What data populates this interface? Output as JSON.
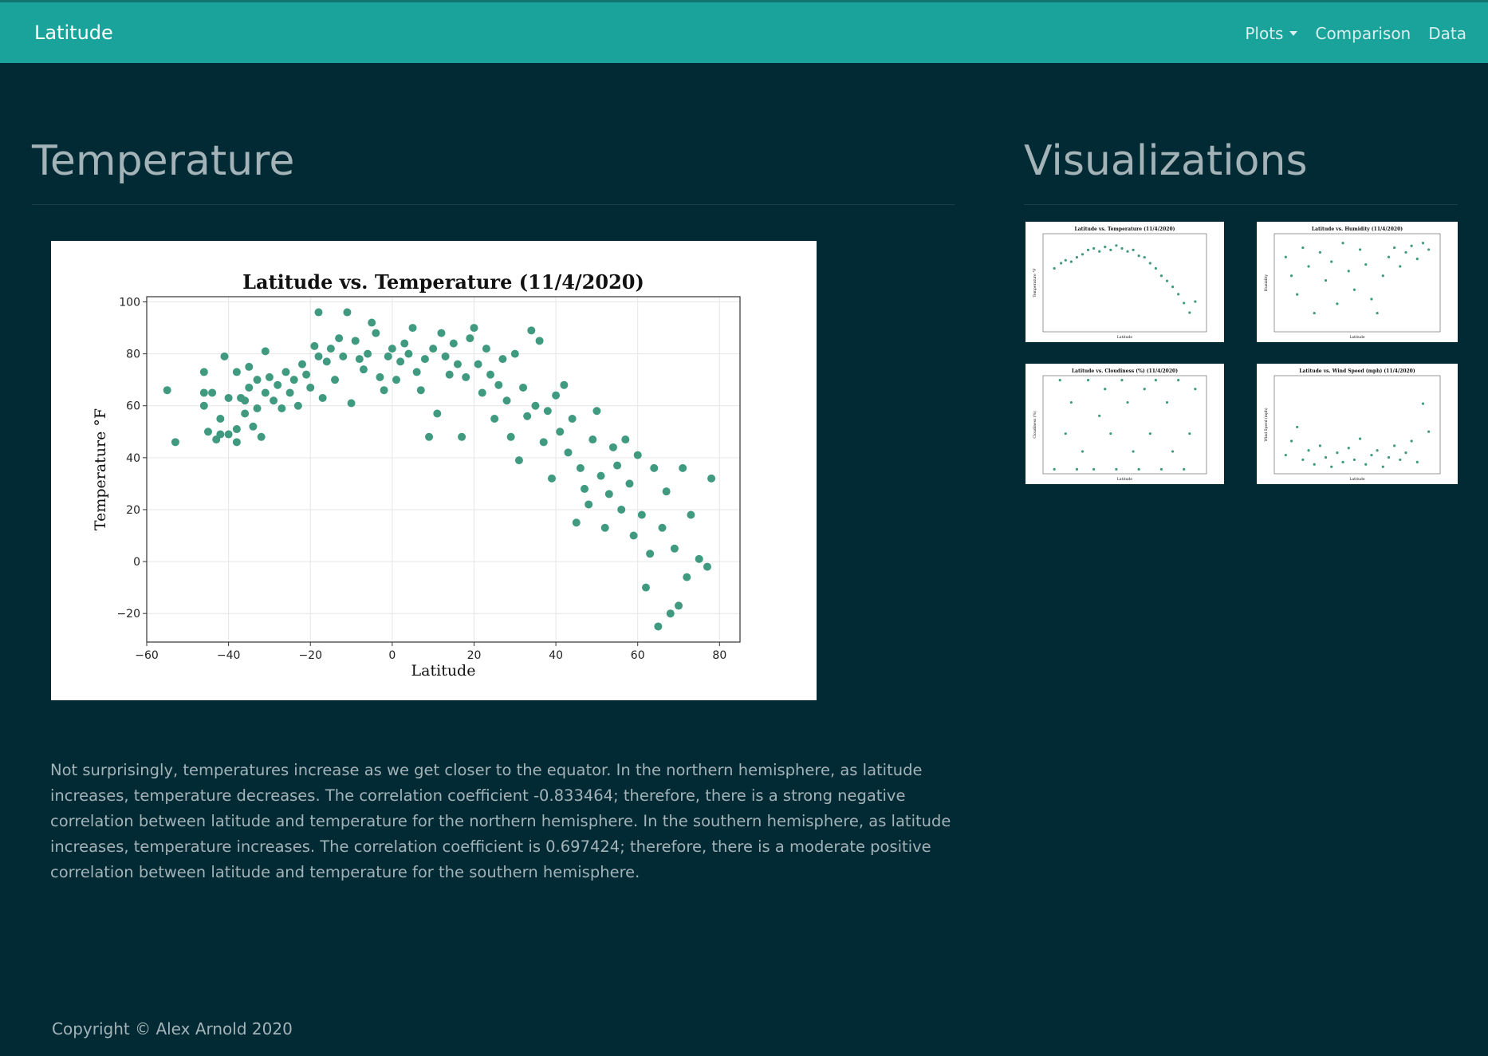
{
  "nav": {
    "brand": "Latitude",
    "links": [
      "Plots",
      "Comparison",
      "Data"
    ]
  },
  "main": {
    "heading": "Temperature",
    "paragraph": "Not surprisingly, temperatures increase as we get closer to the equator. In the northern hemisphere, as latitude increases, temperature decreases. The correlation coefficient -0.833464; therefore, there is a strong negative correlation between latitude and temperature for the northern hemisphere. In the southern hemisphere, as latitude increases, temperature increases. The correlation coefficient is 0.697424; therefore, there is a moderate positive correlation between latitude and temperature for the southern hemisphere.",
    "chart_data": {
      "type": "scatter",
      "title": "Latitude vs. Temperature (11/4/2020)",
      "xlabel": "Latitude",
      "ylabel": "Temperature °F",
      "color": "#3f9a80",
      "grid": true,
      "xlim": [
        -60,
        85
      ],
      "ylim": [
        -31,
        102
      ],
      "xticks": [
        {
          "value": -60,
          "label": "−60"
        },
        {
          "value": -40,
          "label": "−40"
        },
        {
          "value": -20,
          "label": "−20"
        },
        0,
        20,
        40,
        60,
        80
      ],
      "yticks": [
        {
          "value": -20,
          "label": "−20"
        },
        0,
        20,
        40,
        60,
        80,
        100
      ],
      "x": [
        -55,
        -53,
        -46,
        -46,
        -46,
        -45,
        -44,
        -43,
        -42,
        -42,
        -41,
        -40,
        -40,
        -38,
        -38,
        -38,
        -37,
        -36,
        -36,
        -35,
        -35,
        -34,
        -33,
        -33,
        -32,
        -31,
        -31,
        -30,
        -29,
        -28,
        -27,
        -26,
        -25,
        -24,
        -23,
        -22,
        -21,
        -20,
        -19,
        -18,
        -18,
        -17,
        -16,
        -15,
        -14,
        -13,
        -12,
        -11,
        -10,
        -9,
        -8,
        -7,
        -6,
        -5,
        -4,
        -3,
        -2,
        -1,
        0,
        1,
        2,
        3,
        4,
        5,
        6,
        7,
        8,
        9,
        10,
        11,
        12,
        13,
        14,
        15,
        16,
        17,
        18,
        19,
        20,
        21,
        22,
        23,
        24,
        25,
        26,
        27,
        28,
        29,
        30,
        31,
        32,
        33,
        34,
        35,
        36,
        37,
        38,
        39,
        40,
        41,
        42,
        43,
        44,
        45,
        46,
        47,
        48,
        49,
        50,
        51,
        52,
        53,
        54,
        55,
        56,
        57,
        58,
        59,
        60,
        61,
        62,
        63,
        64,
        65,
        66,
        67,
        68,
        69,
        70,
        71,
        72,
        73,
        75,
        77,
        78
      ],
      "y": [
        66,
        46,
        73,
        60,
        65,
        50,
        65,
        47,
        55,
        49,
        79,
        63,
        49,
        73,
        46,
        51,
        63,
        57,
        62,
        67,
        75,
        52,
        59,
        70,
        48,
        81,
        65,
        71,
        62,
        68,
        59,
        73,
        65,
        70,
        60,
        76,
        72,
        67,
        83,
        79,
        96,
        63,
        77,
        82,
        70,
        86,
        79,
        96,
        61,
        85,
        78,
        74,
        80,
        92,
        88,
        71,
        66,
        79,
        82,
        70,
        77,
        84,
        80,
        90,
        73,
        66,
        78,
        48,
        82,
        57,
        88,
        79,
        72,
        84,
        76,
        48,
        71,
        86,
        90,
        76,
        65,
        82,
        72,
        55,
        68,
        78,
        62,
        48,
        80,
        39,
        67,
        56,
        89,
        60,
        85,
        46,
        58,
        32,
        64,
        50,
        68,
        42,
        55,
        15,
        36,
        28,
        22,
        47,
        58,
        33,
        13,
        26,
        44,
        37,
        20,
        47,
        30,
        10,
        41,
        18,
        -10,
        3,
        36,
        -25,
        13,
        27,
        -20,
        5,
        -17,
        36,
        -6,
        18,
        1,
        -2,
        32
      ]
    }
  },
  "sidebar": {
    "heading": "Visualizations",
    "thumbnails": [
      {
        "type": "scatter",
        "title": "Latitude vs. Temperature (11/4/2020)",
        "xlabel": "Latitude",
        "ylabel": "Temperature °F",
        "color": "#3f9a80",
        "xlim": [
          -60,
          85
        ],
        "ylim": [
          -31,
          102
        ],
        "x": [
          -50,
          -44,
          -40,
          -35,
          -30,
          -25,
          -20,
          -15,
          -10,
          -5,
          0,
          5,
          10,
          15,
          20,
          25,
          30,
          35,
          40,
          45,
          50,
          55,
          60,
          65,
          70,
          75
        ],
        "y": [
          55,
          62,
          66,
          64,
          70,
          74,
          80,
          82,
          78,
          84,
          80,
          86,
          82,
          78,
          80,
          72,
          70,
          62,
          55,
          45,
          38,
          30,
          20,
          8,
          -5,
          10
        ]
      },
      {
        "type": "scatter",
        "title": "Latitude vs. Humidity (11/4/2020)",
        "xlabel": "Latitude",
        "ylabel": "Humidity",
        "color": "#3f9a80",
        "xlim": [
          -60,
          85
        ],
        "ylim": [
          0,
          105
        ],
        "x": [
          -50,
          -45,
          -40,
          -35,
          -30,
          -25,
          -20,
          -15,
          -10,
          -5,
          0,
          5,
          10,
          15,
          20,
          25,
          30,
          35,
          40,
          45,
          50,
          55,
          60,
          65,
          70,
          75
        ],
        "y": [
          80,
          60,
          40,
          90,
          70,
          20,
          85,
          55,
          75,
          30,
          95,
          65,
          45,
          88,
          72,
          35,
          20,
          60,
          80,
          90,
          70,
          85,
          92,
          78,
          95,
          88
        ]
      },
      {
        "type": "scatter",
        "title": "Latitude vs. Cloudiness (%) (11/4/2020)",
        "xlabel": "Latitude",
        "ylabel": "Cloudiness (%)",
        "color": "#3f9a80",
        "xlim": [
          -60,
          85
        ],
        "ylim": [
          -5,
          105
        ],
        "x": [
          -50,
          -45,
          -40,
          -35,
          -30,
          -25,
          -20,
          -15,
          -10,
          -5,
          0,
          5,
          10,
          15,
          20,
          25,
          30,
          35,
          40,
          45,
          50,
          55,
          60,
          65,
          70,
          75
        ],
        "y": [
          0,
          100,
          40,
          75,
          0,
          20,
          100,
          0,
          60,
          90,
          40,
          0,
          100,
          75,
          20,
          0,
          90,
          40,
          100,
          0,
          75,
          20,
          100,
          0,
          40,
          90
        ]
      },
      {
        "type": "scatter",
        "title": "Latitude vs. Wind Speed (mph) (11/4/2020)",
        "xlabel": "Latitude",
        "ylabel": "Wind Speed (mph)",
        "color": "#3f9a80",
        "xlim": [
          -60,
          85
        ],
        "ylim": [
          0,
          42
        ],
        "x": [
          -50,
          -45,
          -40,
          -35,
          -30,
          -25,
          -20,
          -15,
          -10,
          -5,
          0,
          5,
          10,
          15,
          20,
          25,
          30,
          35,
          40,
          45,
          50,
          55,
          60,
          65,
          70,
          75
        ],
        "y": [
          8,
          14,
          20,
          6,
          10,
          4,
          12,
          7,
          3,
          9,
          5,
          11,
          6,
          15,
          4,
          8,
          10,
          3,
          7,
          12,
          6,
          9,
          14,
          5,
          30,
          18
        ]
      }
    ]
  },
  "footer": "Copyright © Alex Arnold 2020"
}
